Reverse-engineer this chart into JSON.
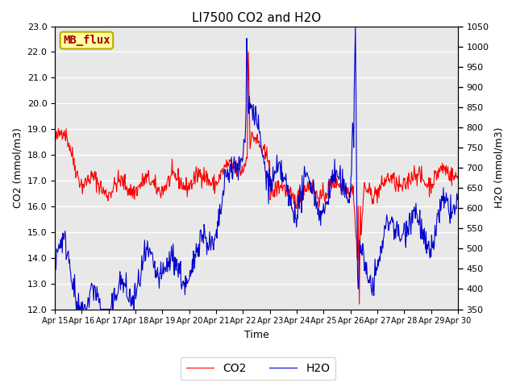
{
  "title": "LI7500 CO2 and H2O",
  "xlabel": "Time",
  "ylabel_left": "CO2 (mmol/m3)",
  "ylabel_right": "H2O (mmol/m3)",
  "ylim_left": [
    12.0,
    23.0
  ],
  "ylim_right": [
    350,
    1050
  ],
  "yticks_left": [
    12.0,
    13.0,
    14.0,
    15.0,
    16.0,
    17.0,
    18.0,
    19.0,
    20.0,
    21.0,
    22.0,
    23.0
  ],
  "yticks_right": [
    350,
    400,
    450,
    500,
    550,
    600,
    650,
    700,
    750,
    800,
    850,
    900,
    950,
    1000,
    1050
  ],
  "xtick_labels": [
    "Apr 15",
    "Apr 16",
    "Apr 17",
    "Apr 18",
    "Apr 19",
    "Apr 20",
    "Apr 21",
    "Apr 22",
    "Apr 23",
    "Apr 24",
    "Apr 25",
    "Apr 26",
    "Apr 27",
    "Apr 28",
    "Apr 29",
    "Apr 30"
  ],
  "legend_label_co2": "CO2",
  "legend_label_h2o": "H2O",
  "co2_color": "#FF0000",
  "h2o_color": "#0000CD",
  "bg_color": "#E8E8E8",
  "label_box_color": "#FFFFA0",
  "label_box_edge": "#BBAA00",
  "label_text": "MB_flux",
  "label_text_color": "#AA0000",
  "grid_color": "#FFFFFF",
  "font_size": 9,
  "title_font_size": 11
}
